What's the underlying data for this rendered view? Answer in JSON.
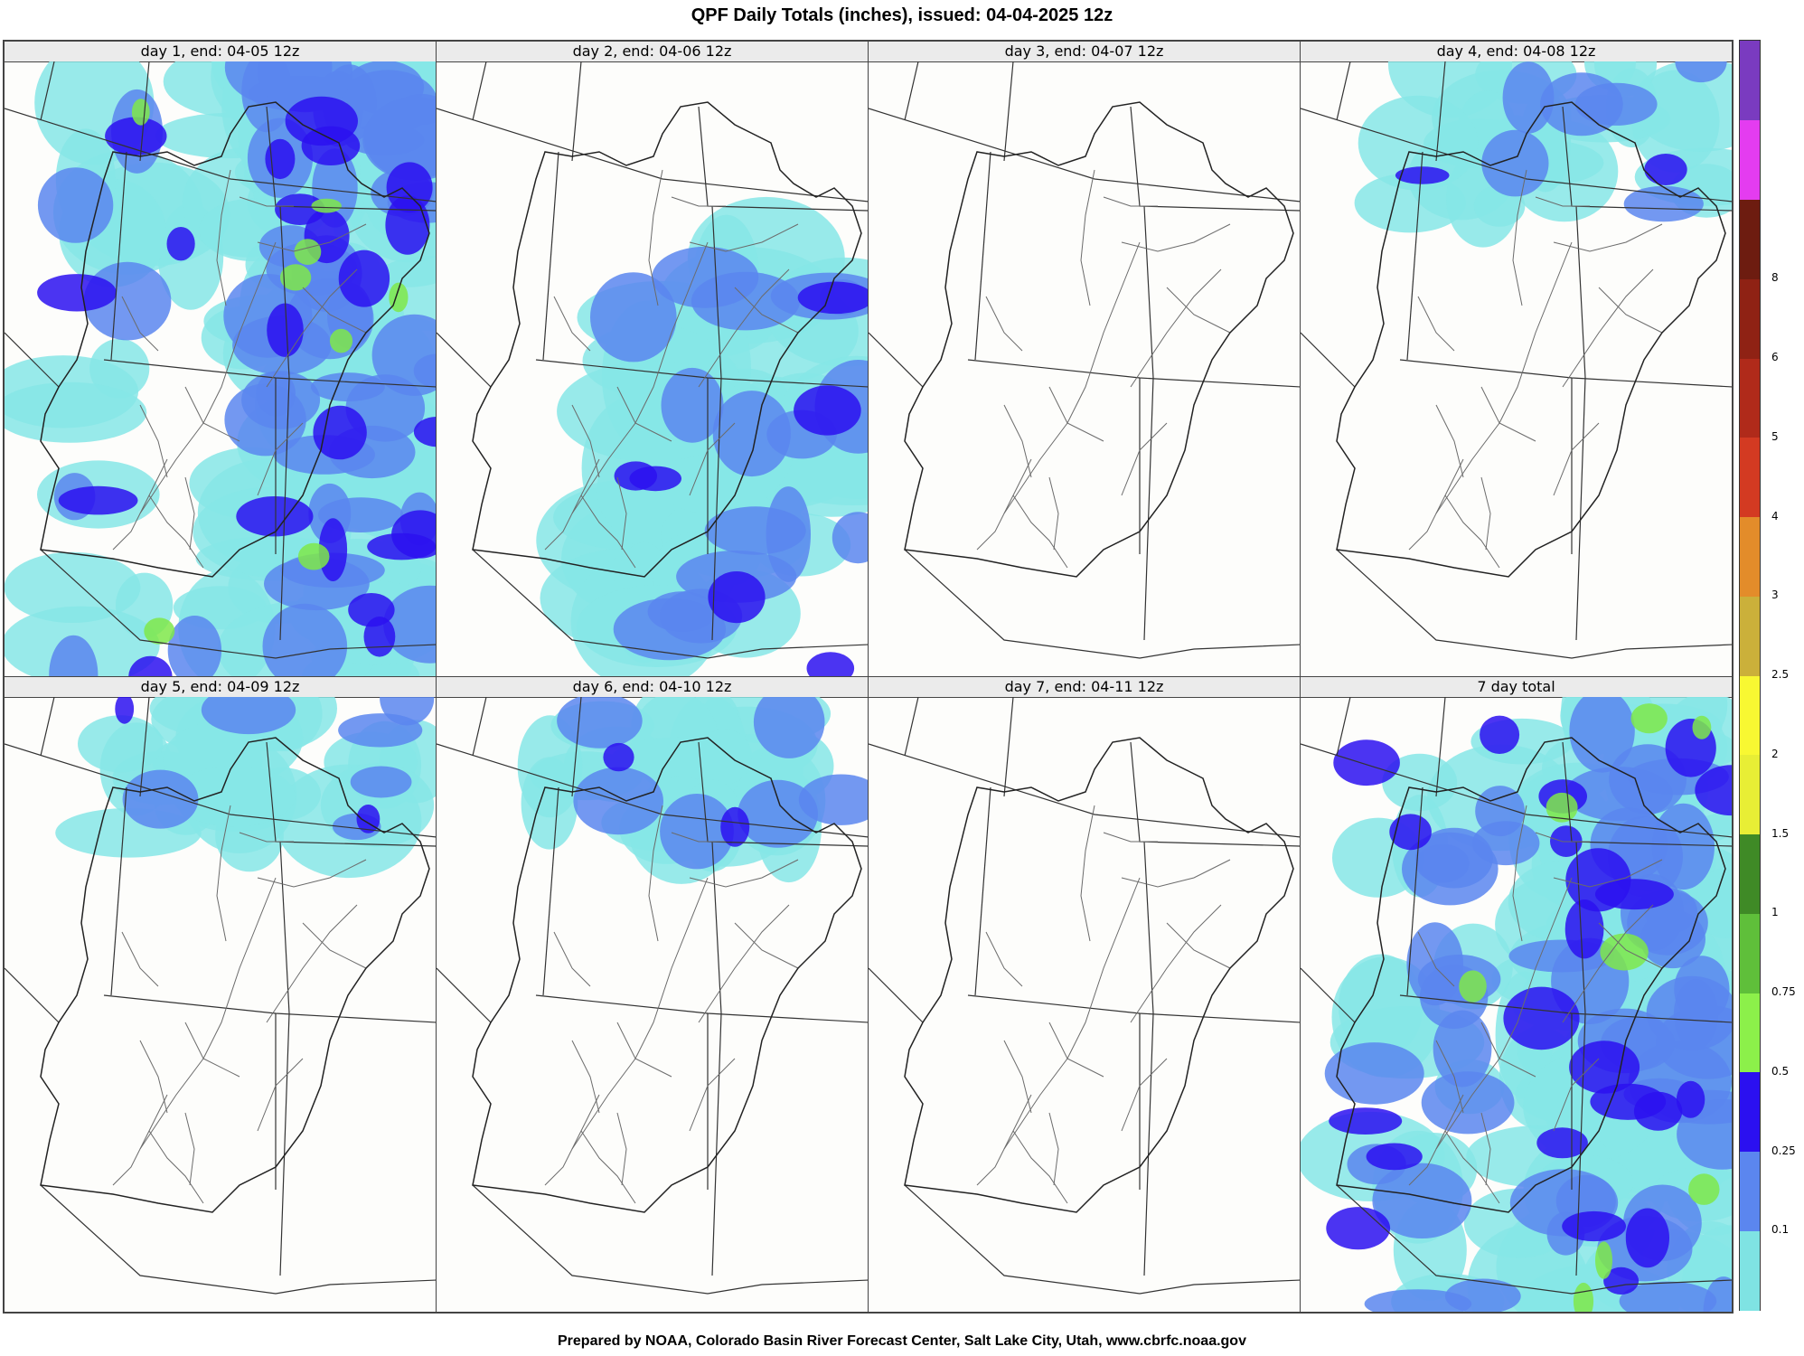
{
  "title": "QPF Daily Totals (inches),  issued: 04-04-2025 12z",
  "footer": "Prepared by NOAA, Colorado Basin River Forecast Center, Salt Lake City, Utah, www.cbrfc.noaa.gov",
  "panels": [
    {
      "label": "day 1, end: 04-05 12z",
      "intensity": "high"
    },
    {
      "label": "day 2, end: 04-06 12z",
      "intensity": "medium"
    },
    {
      "label": "day 3, end: 04-07 12z",
      "intensity": "none"
    },
    {
      "label": "day 4, end: 04-08 12z",
      "intensity": "low"
    },
    {
      "label": "day 5, end: 04-09 12z",
      "intensity": "low"
    },
    {
      "label": "day 6, end: 04-10 12z",
      "intensity": "low"
    },
    {
      "label": "day 7, end: 04-11 12z",
      "intensity": "none"
    },
    {
      "label": "7 day total",
      "intensity": "high"
    }
  ],
  "colorbar": {
    "levels": [
      "0.1",
      "0.25",
      "0.5",
      "0.75",
      "1",
      "1.5",
      "2",
      "2.5",
      "3",
      "4",
      "5",
      "6",
      "8"
    ],
    "colors": [
      "#7fe3e3",
      "#5b86ef",
      "#2b10f0",
      "#8cf04a",
      "#5fbf3a",
      "#3f8a26",
      "#e8ee35",
      "#f8f832",
      "#cbb03a",
      "#e38c2a",
      "#d33a22",
      "#b02a1a",
      "#8f2214",
      "#6d1c10",
      "#e43cf0",
      "#7a3bc0"
    ]
  },
  "colors": {
    "light_cyan": "#86e6e6",
    "medium_blue": "#5b86ef",
    "deep_blue": "#2b10f0",
    "light_green": "#7fe84a",
    "river": "#6b6b6b",
    "border": "#222222"
  }
}
